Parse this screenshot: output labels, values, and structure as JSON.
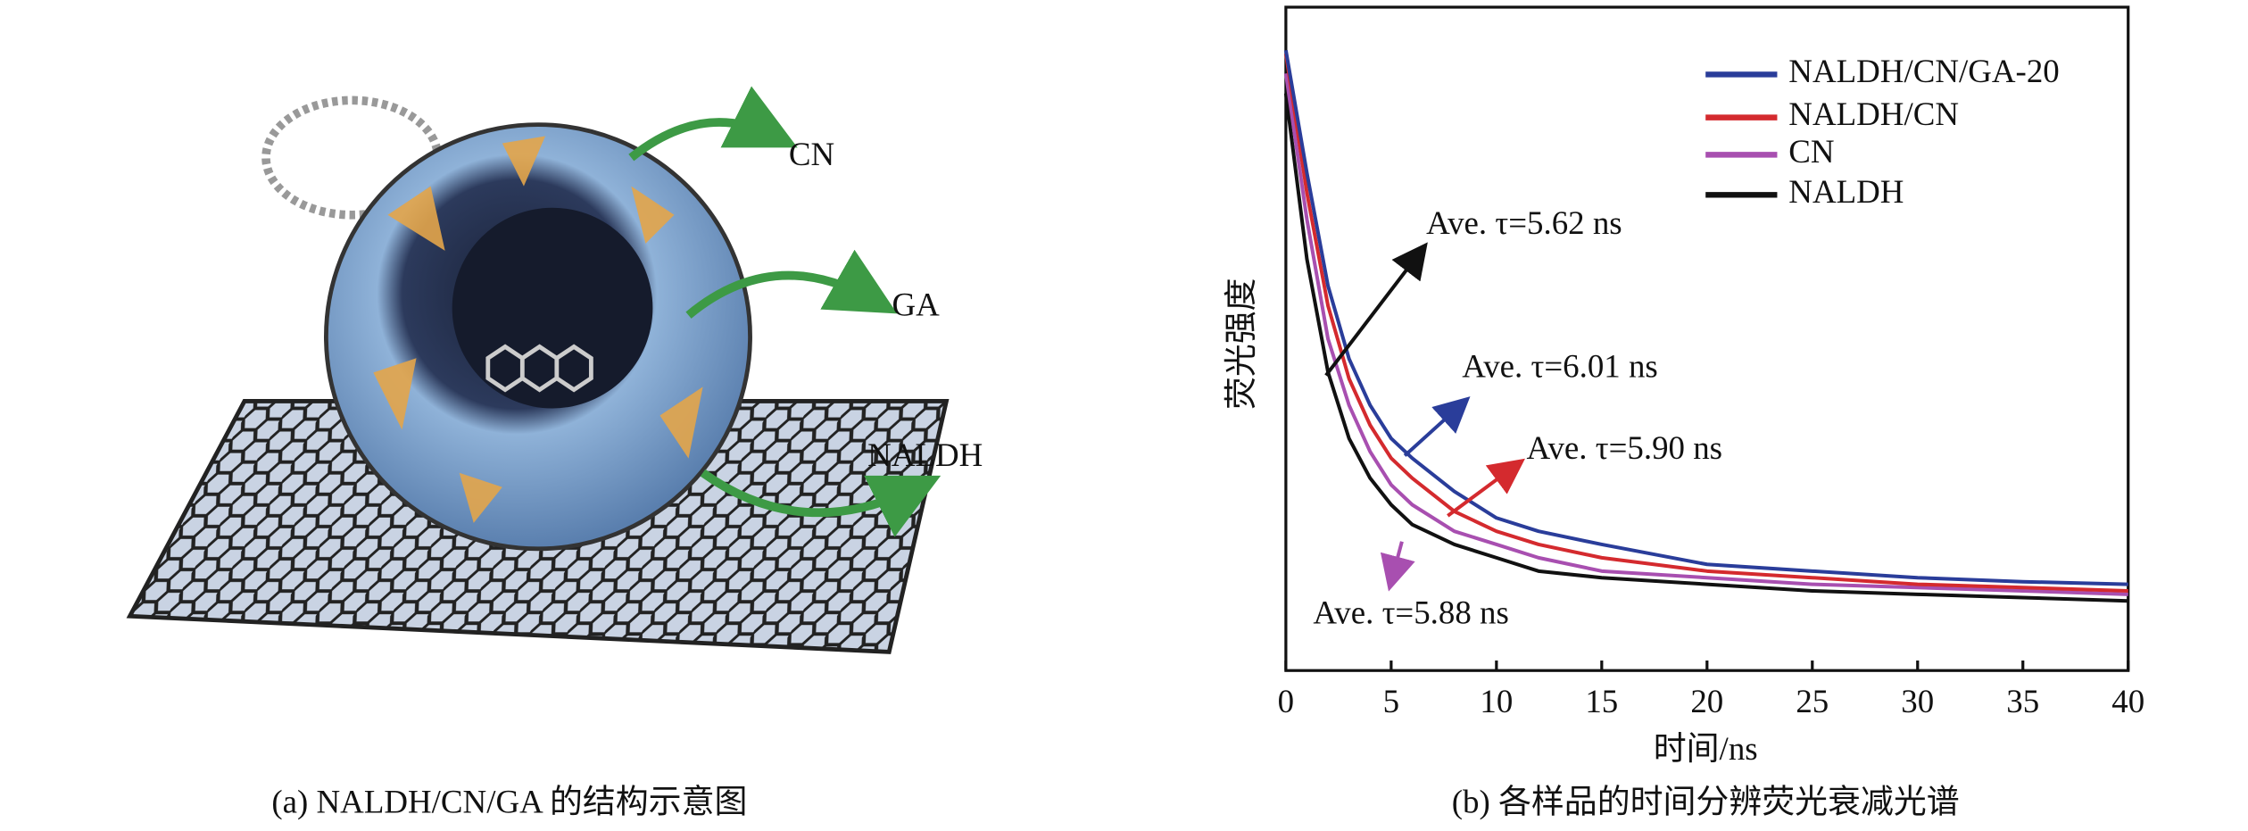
{
  "diagram": {
    "labels": [
      "CN",
      "GA",
      "NALDH"
    ],
    "caption": "(a) NALDH/CN/GA 的结构示意图"
  },
  "chart_data": {
    "type": "line",
    "caption": "(b) 各样品的时间分辨荧光衰减光谱",
    "x_label": "时间/ns",
    "y_label": "荧光强度",
    "x": [
      0,
      1,
      2,
      3,
      4,
      5,
      6,
      8,
      10,
      12,
      15,
      20,
      25,
      30,
      35,
      40
    ],
    "xlim": [
      0,
      40
    ],
    "xticks": [
      0,
      5,
      10,
      15,
      20,
      25,
      30,
      35,
      40
    ],
    "ylim": [
      0,
      1
    ],
    "legend": "upper right",
    "series": [
      {
        "name": "NALDH/CN/GA-20",
        "color": "#2a3d9a",
        "values": [
          0.935,
          0.75,
          0.58,
          0.47,
          0.4,
          0.35,
          0.32,
          0.27,
          0.23,
          0.21,
          0.19,
          0.16,
          0.15,
          0.14,
          0.134,
          0.13
        ]
      },
      {
        "name": "NALDH/CN",
        "color": "#d42a2e",
        "values": [
          0.93,
          0.72,
          0.55,
          0.44,
          0.37,
          0.32,
          0.29,
          0.24,
          0.21,
          0.19,
          0.17,
          0.15,
          0.14,
          0.13,
          0.125,
          0.12
        ]
      },
      {
        "name": "CN",
        "color": "#a84fb0",
        "values": [
          0.9,
          0.68,
          0.5,
          0.4,
          0.33,
          0.28,
          0.25,
          0.21,
          0.19,
          0.17,
          0.15,
          0.14,
          0.13,
          0.125,
          0.12,
          0.115
        ]
      },
      {
        "name": "NALDH",
        "color": "#111111",
        "values": [
          0.87,
          0.62,
          0.45,
          0.35,
          0.29,
          0.25,
          0.22,
          0.19,
          0.17,
          0.15,
          0.14,
          0.13,
          0.12,
          0.115,
          0.11,
          0.105
        ]
      }
    ],
    "annotations": [
      "Ave. τ=5.62 ns",
      "Ave. τ=6.01 ns",
      "Ave. τ=5.90 ns",
      "Ave. τ=5.88 ns"
    ]
  }
}
